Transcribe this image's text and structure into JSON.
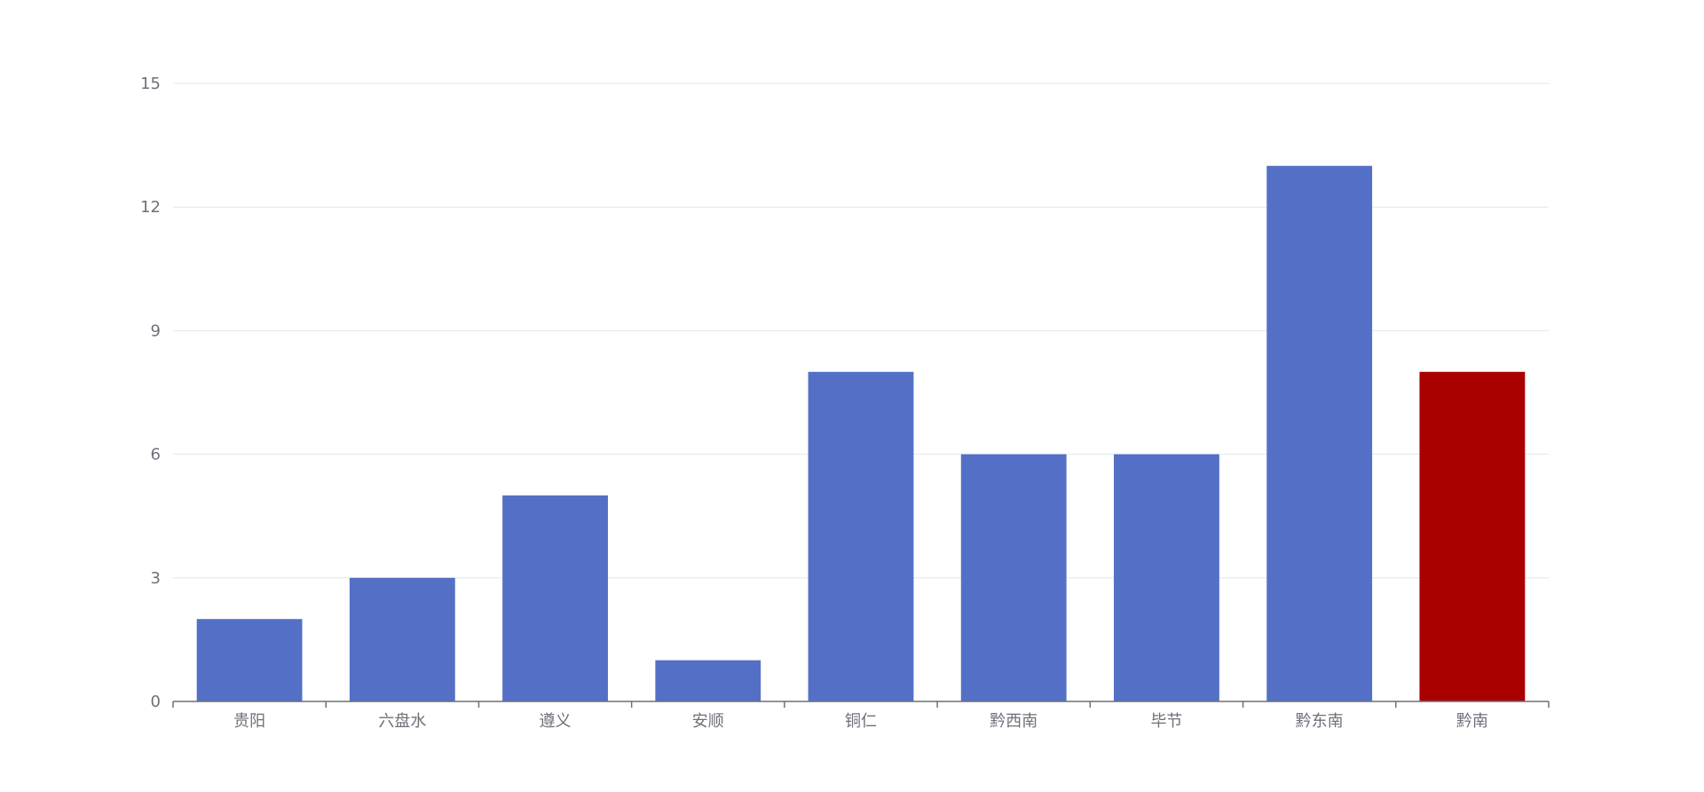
{
  "chart_data": {
    "type": "bar",
    "categories": [
      "贵阳",
      "六盘水",
      "遵义",
      "安顺",
      "铜仁",
      "黔西南",
      "毕节",
      "黔东南",
      "黔南"
    ],
    "values": [
      2,
      3,
      5,
      1,
      8,
      6,
      6,
      13,
      8
    ],
    "highlight_index": 8,
    "ylim": [
      0,
      15
    ],
    "yticks": [
      0,
      3,
      6,
      9,
      12,
      15
    ],
    "grid": true,
    "colors": {
      "bar": "#5470c6",
      "highlight": "#a90000",
      "grid": "#e0e6f1",
      "axis": "#6e7079"
    }
  }
}
